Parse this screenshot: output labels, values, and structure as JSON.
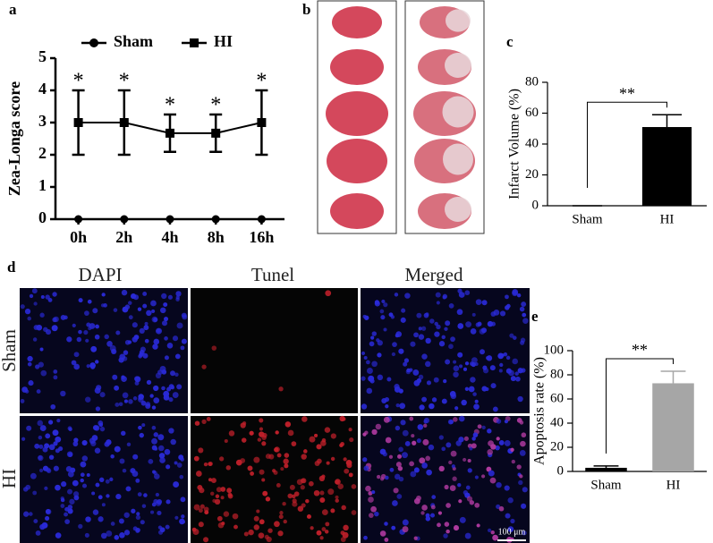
{
  "panel_labels": [
    "a",
    "b",
    "c",
    "d",
    "e"
  ],
  "micrograph": {
    "columns": [
      "DAPI",
      "Tunel",
      "Merged"
    ],
    "rows": [
      "Sham",
      "HI"
    ],
    "scale_bar": "100 μm"
  },
  "chart_data": [
    {
      "type": "line",
      "ylabel": "Zea-Longa score",
      "categories": [
        "0h",
        "2h",
        "4h",
        "8h",
        "16h"
      ],
      "series": [
        {
          "name": "Sham",
          "color": "#000000",
          "marker": "circle",
          "values": [
            0,
            0,
            0,
            0,
            0
          ]
        },
        {
          "name": "HI",
          "color": "#000000",
          "marker": "square",
          "values": [
            3,
            3,
            2.67,
            2.67,
            3
          ],
          "errors": [
            1,
            1,
            0.58,
            0.58,
            1
          ],
          "annotations": [
            "*",
            "*",
            "*",
            "*",
            "*"
          ]
        }
      ],
      "ylim": [
        0,
        5
      ],
      "yticks": [
        0,
        1,
        2,
        3,
        4,
        5
      ],
      "legend": "top"
    },
    {
      "type": "bar",
      "ylabel": "Infarct Volume (%)",
      "categories": [
        "Sham",
        "HI"
      ],
      "values": [
        0,
        51
      ],
      "errors": [
        0,
        8
      ],
      "colors": [
        "#000000",
        "#000000"
      ],
      "significance": "**",
      "ylim": [
        0,
        80
      ],
      "yticks": [
        0,
        20,
        40,
        60,
        80
      ]
    },
    {
      "type": "bar",
      "ylabel": "Apoptosis rate (%)",
      "categories": [
        "Sham",
        "HI"
      ],
      "values": [
        3,
        73
      ],
      "errors": [
        1.5,
        10
      ],
      "colors": [
        "#000000",
        "#a6a6a6"
      ],
      "significance": "**",
      "ylim": [
        0,
        100
      ],
      "yticks": [
        0,
        20,
        40,
        60,
        80,
        100
      ]
    }
  ]
}
